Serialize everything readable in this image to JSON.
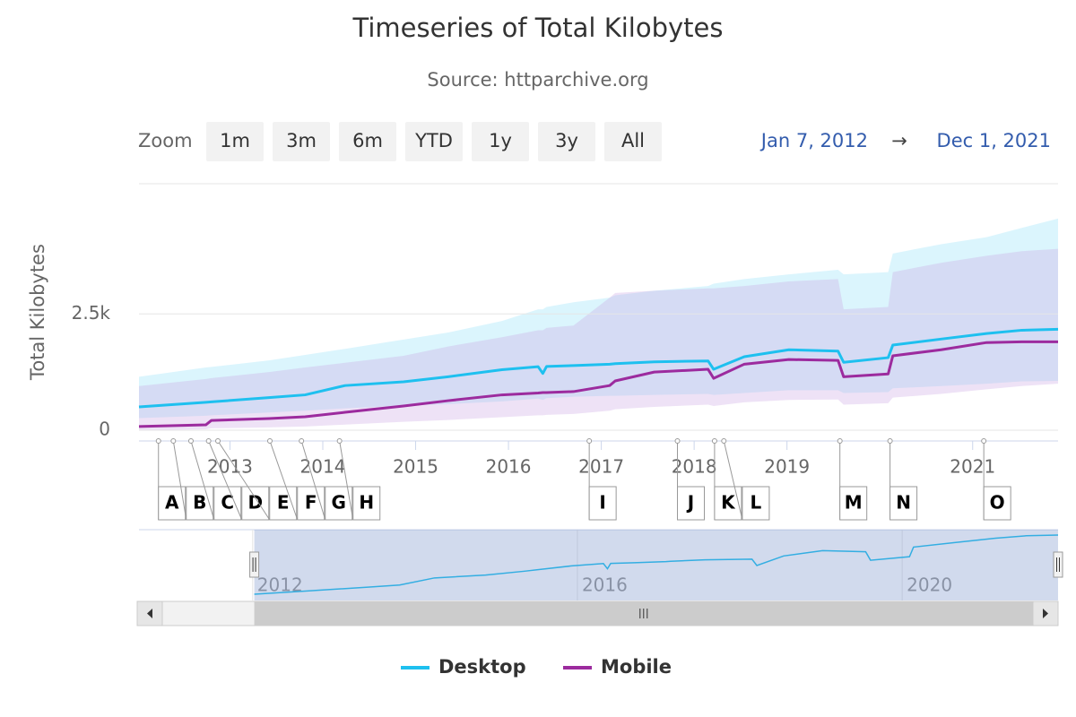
{
  "chart_data": {
    "type": "line",
    "title": "Timeseries of Total Kilobytes",
    "subtitle": "Source: httparchive.org",
    "y_label": "Total Kilobytes",
    "range_selector": {
      "label": "Zoom",
      "buttons": [
        "1m",
        "3m",
        "6m",
        "YTD",
        "1y",
        "3y",
        "All"
      ],
      "from": "Jan 7, 2012",
      "separator": "→",
      "to": "Dec 1, 2021"
    },
    "xlim": [
      2012.02,
      2021.92
    ],
    "xticks": [
      2013,
      2014,
      2015,
      2016,
      2017,
      2018,
      2019,
      2021
    ],
    "ylim": [
      0,
      5300
    ],
    "yticks": [
      0,
      {
        "value": 2500,
        "label": "2.5k"
      }
    ],
    "grid": true,
    "x": [
      2012.02,
      2012.74,
      2012.8,
      2013.42,
      2013.81,
      2014.24,
      2014.87,
      2015.35,
      2015.93,
      2016.32,
      2016.37,
      2016.41,
      2016.7,
      2017.09,
      2017.15,
      2017.57,
      2018.15,
      2018.21,
      2018.54,
      2019.02,
      2019.55,
      2019.61,
      2020.09,
      2020.14,
      2020.66,
      2021.15,
      2021.53,
      2021.92
    ],
    "bands": [
      {
        "color": "#7fdcf8",
        "opacity": 0.28,
        "low": [
          260,
          310,
          320,
          380,
          420,
          470,
          530,
          560,
          620,
          680,
          650,
          690,
          720,
          740,
          740,
          760,
          780,
          760,
          800,
          860,
          860,
          800,
          820,
          900,
          950,
          1000,
          1050,
          1060
        ],
        "high": [
          1150,
          1350,
          1360,
          1500,
          1620,
          1750,
          1950,
          2100,
          2350,
          2600,
          2600,
          2650,
          2750,
          2850,
          2900,
          3000,
          3100,
          3150,
          3250,
          3350,
          3450,
          3350,
          3400,
          3800,
          4000,
          4150,
          4350,
          4550
        ]
      },
      {
        "color": "#c8a0e0",
        "opacity": 0.3,
        "low": [
          0,
          20,
          40,
          60,
          80,
          120,
          180,
          220,
          280,
          320,
          320,
          330,
          350,
          420,
          450,
          500,
          550,
          520,
          600,
          650,
          660,
          550,
          580,
          700,
          780,
          880,
          950,
          1000
        ],
        "high": [
          950,
          1100,
          1120,
          1250,
          1350,
          1450,
          1600,
          1800,
          2000,
          2150,
          2150,
          2200,
          2250,
          2850,
          2950,
          3000,
          3050,
          3050,
          3100,
          3200,
          3250,
          2600,
          2650,
          3400,
          3600,
          3750,
          3850,
          3900
        ]
      }
    ],
    "series": [
      {
        "name": "Desktop",
        "color": "#1ec0ef",
        "values": [
          500,
          600,
          610,
          700,
          760,
          960,
          1040,
          1150,
          1300,
          1365,
          1220,
          1370,
          1390,
          1420,
          1430,
          1470,
          1490,
          1310,
          1580,
          1730,
          1700,
          1460,
          1560,
          1830,
          1960,
          2080,
          2150,
          2170
        ]
      },
      {
        "name": "Mobile",
        "color": "#9c2b9e",
        "values": [
          80,
          115,
          210,
          250,
          290,
          385,
          520,
          635,
          760,
          800,
          810,
          810,
          830,
          960,
          1060,
          1250,
          1310,
          1115,
          1420,
          1520,
          1500,
          1150,
          1210,
          1600,
          1730,
          1885,
          1900,
          1900
        ]
      }
    ],
    "flags": [
      {
        "x": 2012.23,
        "title": "A"
      },
      {
        "x": 2012.39,
        "title": "B"
      },
      {
        "x": 2012.58,
        "title": "C"
      },
      {
        "x": 2012.77,
        "title": "D"
      },
      {
        "x": 2012.87,
        "title": "E"
      },
      {
        "x": 2013.43,
        "title": "F"
      },
      {
        "x": 2013.77,
        "title": "G"
      },
      {
        "x": 2014.18,
        "title": "H"
      },
      {
        "x": 2016.87,
        "title": "I"
      },
      {
        "x": 2017.82,
        "title": "J"
      },
      {
        "x": 2018.22,
        "title": "K"
      },
      {
        "x": 2018.32,
        "title": "L"
      },
      {
        "x": 2019.57,
        "title": "M"
      },
      {
        "x": 2020.11,
        "title": "N"
      },
      {
        "x": 2021.12,
        "title": "O"
      }
    ],
    "navigator": {
      "xlim": [
        2010.6,
        2021.92
      ],
      "xticks": [
        2012,
        2016,
        2020
      ]
    }
  }
}
